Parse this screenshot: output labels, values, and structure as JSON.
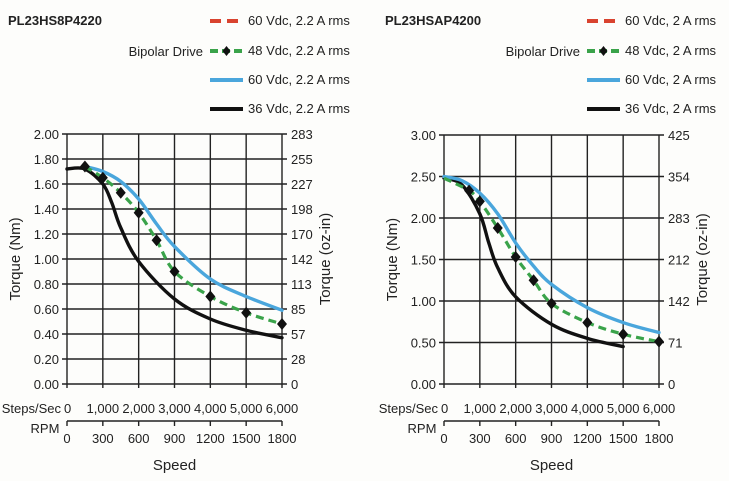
{
  "chart_data": [
    {
      "type": "line",
      "title": "PL23HS8P4220",
      "drive_label": "Bipolar Drive",
      "xlabel": "Speed",
      "x_unit_label": "Steps/Sec",
      "x2_unit_label": "RPM",
      "ylabel": "Torque (Nm)",
      "y2label": "Torque (oz-in)",
      "xlim": [
        0,
        6000
      ],
      "ylim": [
        0,
        2.0
      ],
      "x_ticks": [
        "0",
        "1,000",
        "2,000",
        "3,000",
        "4,000",
        "5,000",
        "6,000"
      ],
      "x2_ticks": [
        "0",
        "300",
        "600",
        "900",
        "1200",
        "1500",
        "1800"
      ],
      "y_ticks": [
        "0.00",
        "0.20",
        "0.40",
        "0.60",
        "0.80",
        "1.00",
        "1.20",
        "1.40",
        "1.60",
        "1.80",
        "2.00"
      ],
      "y2_ticks": [
        "0",
        "28",
        "57",
        "85",
        "113",
        "142",
        "170",
        "198",
        "227",
        "255",
        "283"
      ],
      "grid": true,
      "legend_position": "top-right",
      "series": [
        {
          "name": "60 Vdc, 2.2 A rms",
          "style": "dashed",
          "color": "#d9432f",
          "x": [],
          "y": []
        },
        {
          "name": "48 Vdc, 2.2 A rms",
          "style": "dashed-markers",
          "color": "#3aa34a",
          "x": [
            500,
            1000,
            1500,
            2000,
            2500,
            3000,
            4000,
            5000,
            6000
          ],
          "y": [
            1.74,
            1.65,
            1.53,
            1.37,
            1.15,
            0.9,
            0.7,
            0.57,
            0.48
          ]
        },
        {
          "name": "60 Vdc, 2.2 A rms",
          "style": "solid",
          "color": "#4aa6dc",
          "x": [
            500,
            1000,
            1500,
            2000,
            2500,
            3000,
            4000,
            5000,
            6000
          ],
          "y": [
            1.74,
            1.7,
            1.62,
            1.48,
            1.28,
            1.1,
            0.84,
            0.7,
            0.59
          ]
        },
        {
          "name": "36 Vdc, 2.2 A rms",
          "style": "solid",
          "color": "#111111",
          "x": [
            0,
            500,
            1000,
            1250,
            1500,
            2000,
            3000,
            4000,
            5000,
            6000
          ],
          "y": [
            1.72,
            1.72,
            1.6,
            1.45,
            1.25,
            0.98,
            0.68,
            0.52,
            0.43,
            0.37
          ]
        }
      ]
    },
    {
      "type": "line",
      "title": "PL23HSAP4200",
      "drive_label": "Bipolar Drive",
      "xlabel": "Speed",
      "x_unit_label": "Steps/Sec",
      "x2_unit_label": "RPM",
      "ylabel": "Torque (Nm)",
      "y2label": "Torque (oz-in)",
      "xlim": [
        0,
        6000
      ],
      "ylim": [
        0,
        3.0
      ],
      "x_ticks": [
        "0",
        "1,000",
        "2,000",
        "3,000",
        "4,000",
        "5,000",
        "6,000"
      ],
      "x2_ticks": [
        "0",
        "300",
        "600",
        "900",
        "1200",
        "1500",
        "1800"
      ],
      "y_ticks": [
        "0.00",
        "0.50",
        "1.00",
        "1.50",
        "2.00",
        "2.50",
        "3.00"
      ],
      "y2_ticks": [
        "0",
        "71",
        "142",
        "212",
        "283",
        "354",
        "425"
      ],
      "grid": true,
      "legend_position": "top-right",
      "series": [
        {
          "name": "60 Vdc, 2 A rms",
          "style": "dashed",
          "color": "#d9432f",
          "x": [],
          "y": []
        },
        {
          "name": "48 Vdc, 2 A rms",
          "style": "dashed-markers",
          "color": "#3aa34a",
          "x": [
            0,
            700,
            1000,
            1500,
            2000,
            2500,
            3000,
            4000,
            5000,
            6000
          ],
          "y": [
            2.48,
            2.33,
            2.2,
            1.88,
            1.53,
            1.25,
            0.97,
            0.74,
            0.6,
            0.51
          ]
        },
        {
          "name": "60 Vdc, 2 A rms",
          "style": "solid",
          "color": "#4aa6dc",
          "x": [
            0,
            500,
            1000,
            1500,
            2000,
            2500,
            3000,
            4000,
            5000,
            6000
          ],
          "y": [
            2.5,
            2.45,
            2.3,
            2.05,
            1.7,
            1.42,
            1.2,
            0.92,
            0.74,
            0.62
          ]
        },
        {
          "name": "36 Vdc, 2 A rms",
          "style": "solid",
          "color": "#111111",
          "x": [
            0,
            500,
            1000,
            1250,
            1500,
            2000,
            3000,
            4000,
            5000
          ],
          "y": [
            2.48,
            2.4,
            2.05,
            1.7,
            1.4,
            1.05,
            0.72,
            0.55,
            0.45
          ]
        }
      ]
    }
  ]
}
